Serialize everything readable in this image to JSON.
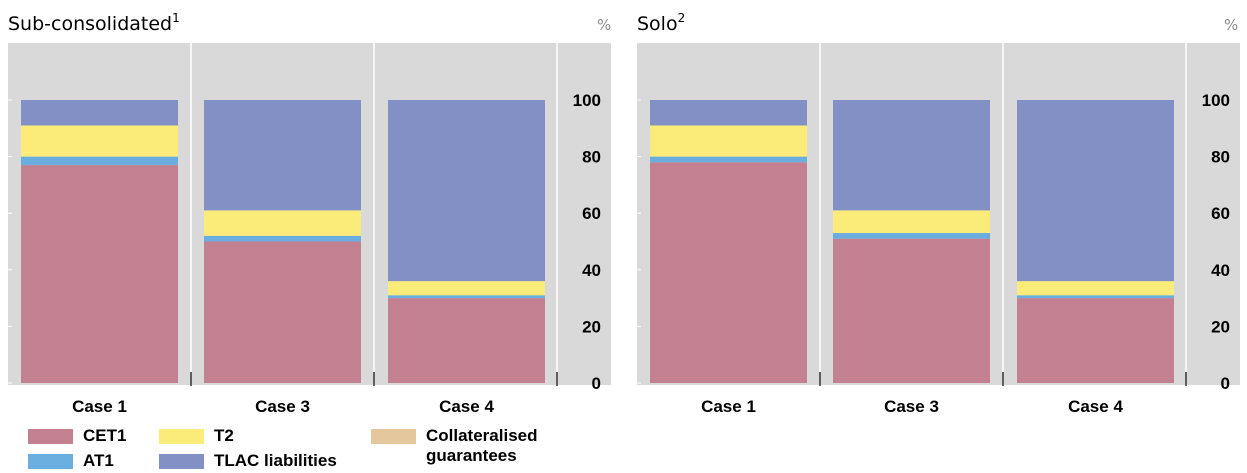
{
  "chart_data": [
    {
      "type": "bar",
      "stacked": true,
      "title": "Sub-consolidated",
      "title_superscript": "1",
      "unit": "%",
      "categories": [
        "Case 1",
        "Case 3",
        "Case 4"
      ],
      "series": [
        {
          "name": "CET1",
          "values": [
            77,
            50,
            30
          ]
        },
        {
          "name": "AT1",
          "values": [
            3,
            2,
            1
          ]
        },
        {
          "name": "T2",
          "values": [
            11,
            9,
            5
          ]
        },
        {
          "name": "TLAC liabilities",
          "values": [
            9,
            39,
            64
          ]
        },
        {
          "name": "Collateralised guarantees",
          "values": [
            0,
            0,
            0
          ]
        }
      ],
      "ylim": [
        0,
        110
      ],
      "yticks": [
        0,
        20,
        40,
        60,
        80,
        100
      ],
      "y_axis_side": "right",
      "grid": true
    },
    {
      "type": "bar",
      "stacked": true,
      "title": "Solo",
      "title_superscript": "2",
      "unit": "%",
      "categories": [
        "Case 1",
        "Case 3",
        "Case 4"
      ],
      "series": [
        {
          "name": "CET1",
          "values": [
            78,
            51,
            30
          ]
        },
        {
          "name": "AT1",
          "values": [
            2,
            2,
            1
          ]
        },
        {
          "name": "T2",
          "values": [
            11,
            8,
            5
          ]
        },
        {
          "name": "TLAC liabilities",
          "values": [
            9,
            39,
            64
          ]
        },
        {
          "name": "Collateralised guarantees",
          "values": [
            0,
            0,
            0
          ]
        }
      ],
      "ylim": [
        0,
        110
      ],
      "yticks": [
        0,
        20,
        40,
        60,
        80,
        100
      ],
      "y_axis_side": "right",
      "grid": true
    }
  ],
  "colors": {
    "CET1": "#c38090",
    "AT1": "#6aaee0",
    "T2": "#fbec7a",
    "TLAC liabilities": "#8290c6",
    "Collateralised guarantees": "#e5c79e",
    "plot_background": "#d9d9d9",
    "grid": "#ffffff"
  },
  "legend": {
    "items": [
      {
        "name": "CET1",
        "color": "#c38090"
      },
      {
        "name": "AT1",
        "color": "#6aaee0"
      },
      {
        "name": "T2",
        "color": "#fbec7a"
      },
      {
        "name": "TLAC liabilities",
        "color": "#8290c6"
      },
      {
        "name": "Collateralised guarantees",
        "color": "#e5c79e"
      }
    ]
  }
}
